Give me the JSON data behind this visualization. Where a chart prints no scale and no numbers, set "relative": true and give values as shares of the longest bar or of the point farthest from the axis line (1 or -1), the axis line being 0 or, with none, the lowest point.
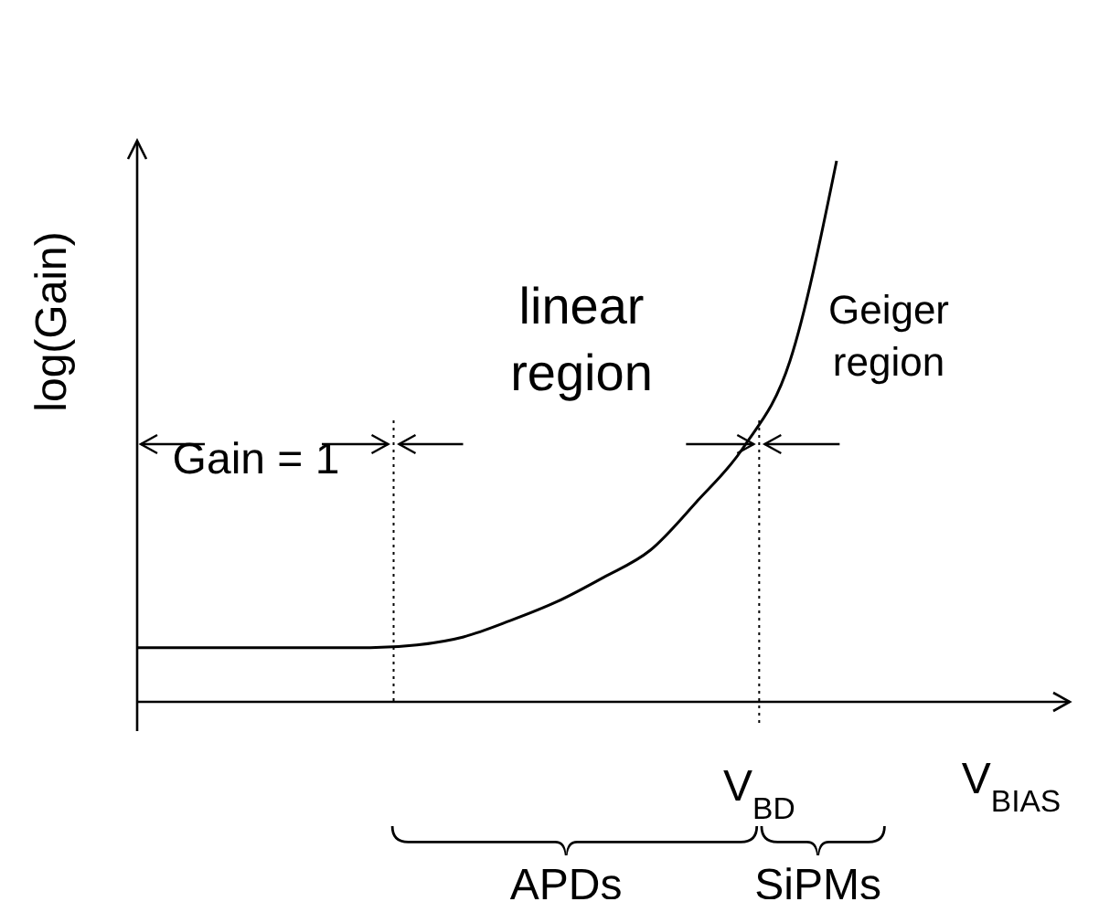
{
  "chart_data": {
    "type": "line",
    "relative": true,
    "xlabel": "V$_{BIAS}$",
    "ylabel": "log(Gain)",
    "categories": [
      null,
      null,
      null,
      null,
      null,
      null,
      null,
      null,
      null,
      null,
      null,
      null,
      null,
      null,
      null,
      null,
      null,
      null,
      null,
      null,
      null
    ],
    "series": [
      {
        "color": "#000000",
        "values": [
          0.1,
          0.1,
          0.1,
          0.1,
          0.1,
          0.1,
          0.105,
          0.12,
          0.15,
          0.185,
          0.23,
          0.28,
          0.37,
          0.47,
          0.63,
          1,
          null,
          null,
          null,
          null,
          null
        ]
      }
    ],
    "annotations": [
      "Gain = 1",
      "linear region",
      "Geiger region",
      "APDs",
      "SiPMs",
      "V$_{BD}$"
    ],
    "marker": "none",
    "line_style": "solid"
  }
}
